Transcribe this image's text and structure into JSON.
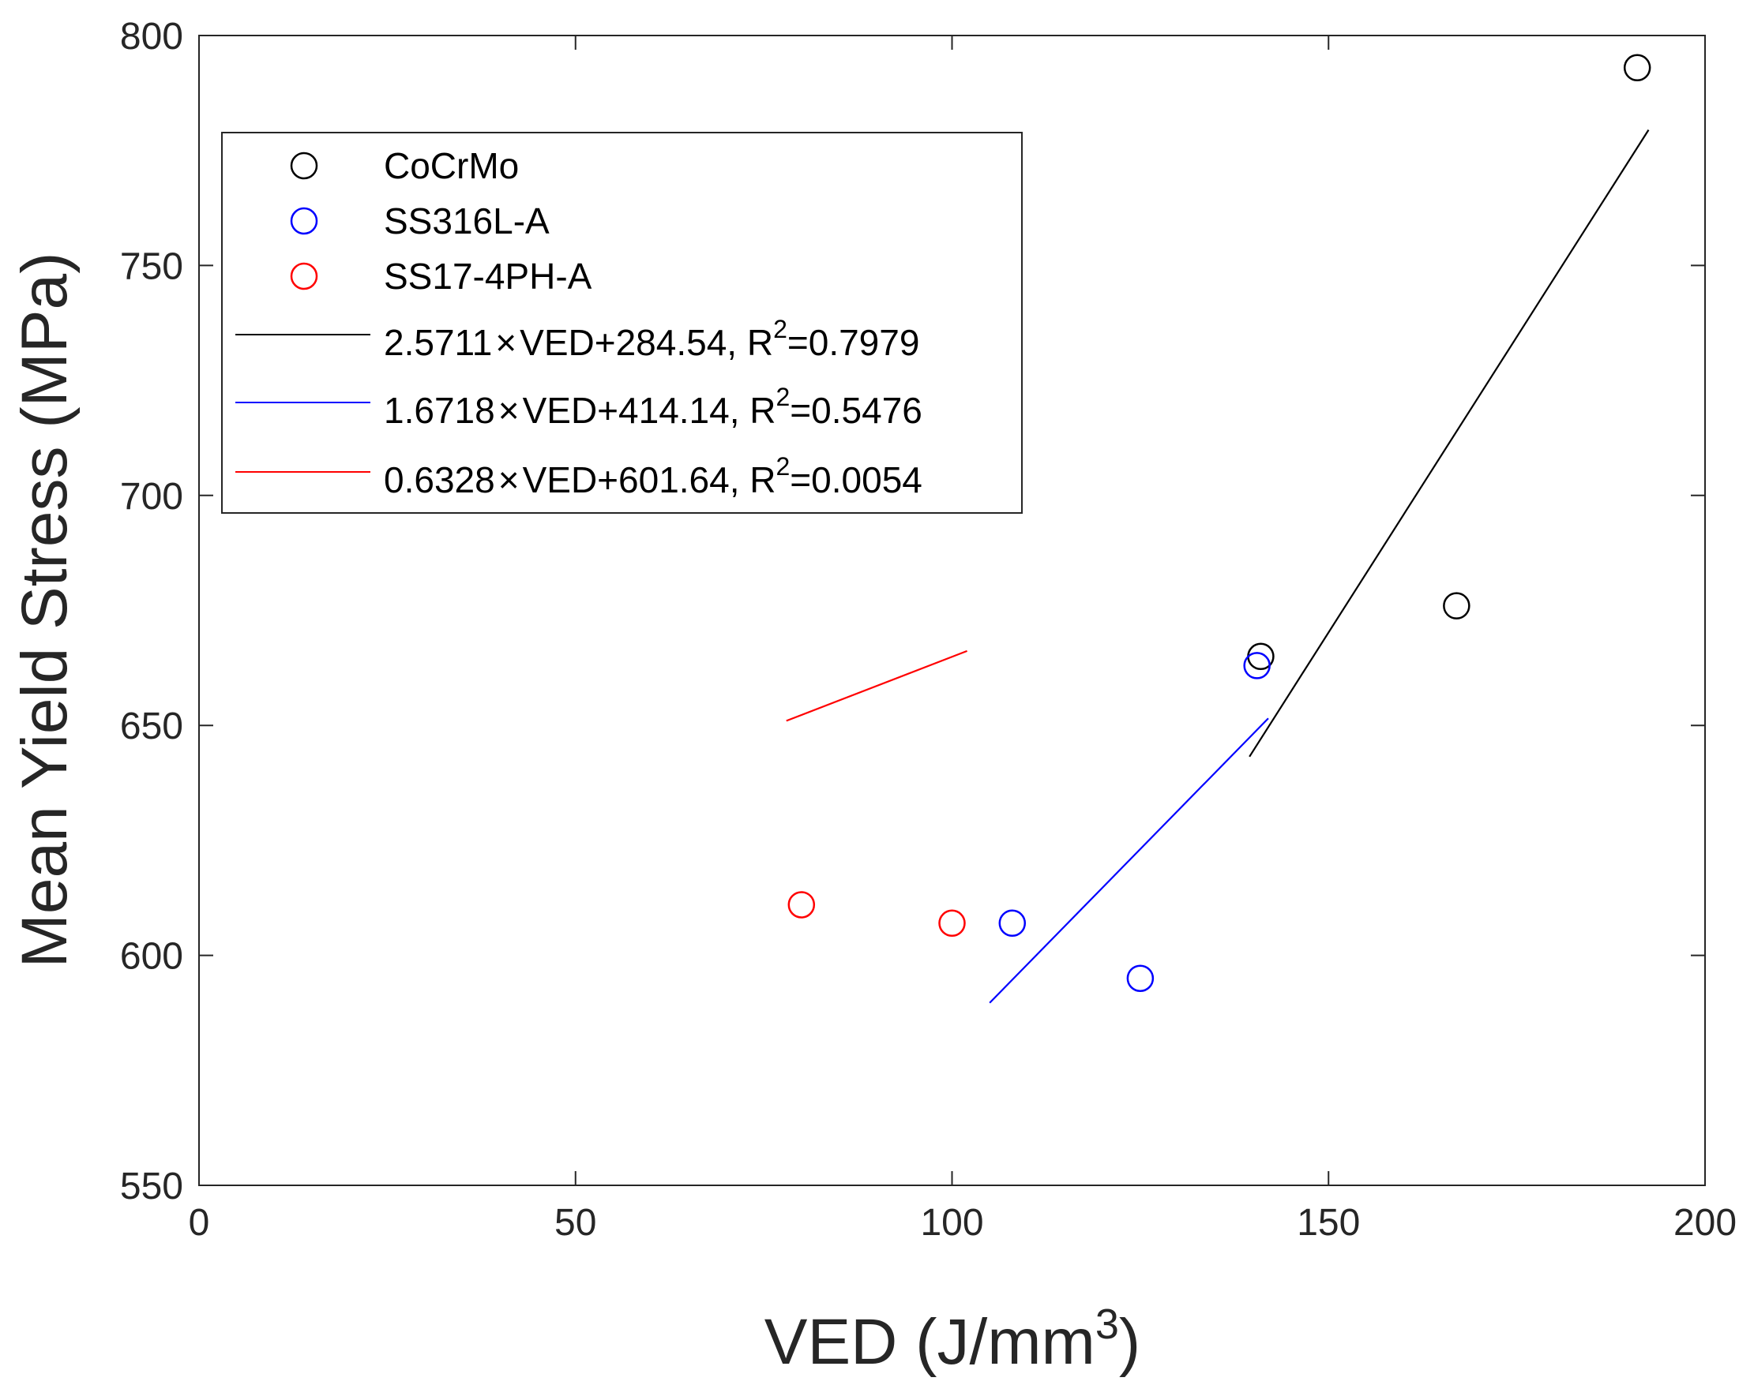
{
  "chart_data": {
    "type": "scatter",
    "title": "",
    "xlabel": "VED (J/mm",
    "xlabel_sup": "3",
    "xlabel_close": ")",
    "ylabel": "Mean Yield Stress (MPa)",
    "xlim": [
      0,
      200
    ],
    "ylim": [
      550,
      800
    ],
    "xticks": [
      0,
      50,
      100,
      150,
      200
    ],
    "yticks": [
      550,
      600,
      650,
      700,
      750,
      800
    ],
    "grid": false,
    "legend_position": "top-left",
    "series": [
      {
        "name": "CoCrMo",
        "color": "#000000",
        "marker": "circle",
        "points": [
          [
            141,
            665
          ],
          [
            167,
            676
          ],
          [
            191,
            793
          ]
        ]
      },
      {
        "name": "SS316L-A",
        "color": "#0000ff",
        "marker": "circle",
        "points": [
          [
            108,
            607
          ],
          [
            125,
            595
          ],
          [
            140.5,
            663
          ]
        ]
      },
      {
        "name": "SS17-4PH-A",
        "color": "#ff0000",
        "marker": "circle",
        "points": [
          [
            80,
            611
          ],
          [
            100,
            607
          ]
        ]
      }
    ],
    "fits": [
      {
        "color": "#000000",
        "slope": 2.5711,
        "intercept": 284.54,
        "x_range": [
          139.5,
          192.5
        ],
        "label_prefix": "2.5711",
        "label_mid": "VED+284.54, R",
        "label_sup": "2",
        "label_suffix": "=0.7979"
      },
      {
        "color": "#0000ff",
        "slope": 1.6718,
        "intercept": 414.14,
        "x_range": [
          105,
          142
        ],
        "label_prefix": "1.6718",
        "label_mid": "VED+414.14, R",
        "label_sup": "2",
        "label_suffix": "=0.5476"
      },
      {
        "color": "#ff0000",
        "slope": 0.6328,
        "intercept": 601.64,
        "x_range": [
          78,
          102
        ],
        "label_prefix": "0.6328",
        "label_mid": "VED+601.64, R",
        "label_sup": "2",
        "label_suffix": "=0.0054"
      }
    ],
    "times_symbol": "×"
  }
}
